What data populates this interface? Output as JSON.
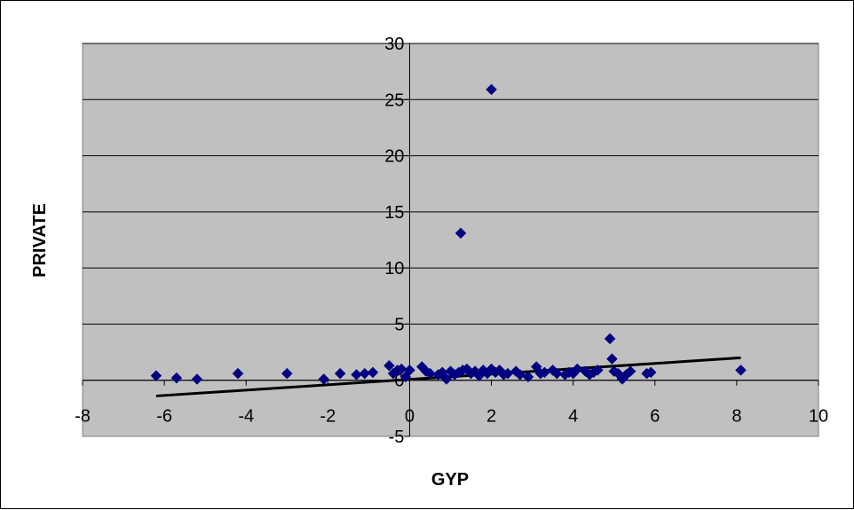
{
  "chart_data": {
    "type": "scatter",
    "title": "",
    "xlabel": "GYP",
    "ylabel": "PRIVATE",
    "xlim": [
      -8,
      10
    ],
    "ylim": [
      -5,
      30
    ],
    "x_ticks": [
      -8,
      -6,
      -4,
      -2,
      0,
      2,
      4,
      6,
      8,
      10
    ],
    "y_ticks": [
      -5,
      0,
      5,
      10,
      15,
      20,
      25,
      30
    ],
    "grid": "horizontal",
    "legend": "none",
    "colors": {
      "plot_area": "#c0c0c0",
      "marker": "#000080",
      "trendline": "#000000",
      "gridline": "#000000"
    },
    "series": [
      {
        "marker": "diamond",
        "points": [
          [
            -6.2,
            0.4
          ],
          [
            -5.7,
            0.2
          ],
          [
            -5.2,
            0.1
          ],
          [
            -4.2,
            0.6
          ],
          [
            -3.0,
            0.6
          ],
          [
            -2.1,
            0.1
          ],
          [
            -1.7,
            0.6
          ],
          [
            -1.3,
            0.5
          ],
          [
            -1.1,
            0.6
          ],
          [
            -0.9,
            0.7
          ],
          [
            -0.5,
            1.3
          ],
          [
            -0.4,
            0.6
          ],
          [
            -0.3,
            0.9
          ],
          [
            -0.2,
            1.0
          ],
          [
            -0.1,
            0.3
          ],
          [
            0.0,
            0.9
          ],
          [
            0.3,
            1.2
          ],
          [
            0.4,
            0.8
          ],
          [
            0.5,
            0.6
          ],
          [
            0.7,
            0.5
          ],
          [
            0.8,
            0.7
          ],
          [
            0.9,
            0.1
          ],
          [
            1.0,
            0.8
          ],
          [
            1.1,
            0.5
          ],
          [
            1.2,
            0.7
          ],
          [
            1.25,
            13.1
          ],
          [
            1.3,
            0.9
          ],
          [
            1.4,
            1.0
          ],
          [
            1.5,
            0.6
          ],
          [
            1.6,
            0.8
          ],
          [
            1.7,
            0.4
          ],
          [
            1.8,
            0.9
          ],
          [
            1.9,
            0.6
          ],
          [
            2.0,
            25.9
          ],
          [
            2.0,
            1.0
          ],
          [
            2.1,
            0.7
          ],
          [
            2.2,
            0.9
          ],
          [
            2.3,
            0.5
          ],
          [
            2.4,
            0.6
          ],
          [
            2.6,
            0.8
          ],
          [
            2.7,
            0.5
          ],
          [
            2.9,
            0.3
          ],
          [
            3.1,
            1.2
          ],
          [
            3.2,
            0.6
          ],
          [
            3.3,
            0.7
          ],
          [
            3.5,
            0.9
          ],
          [
            3.6,
            0.6
          ],
          [
            3.8,
            0.5
          ],
          [
            3.9,
            0.7
          ],
          [
            4.0,
            0.6
          ],
          [
            4.1,
            1.0
          ],
          [
            4.3,
            0.8
          ],
          [
            4.4,
            0.5
          ],
          [
            4.5,
            0.7
          ],
          [
            4.6,
            0.9
          ],
          [
            4.9,
            3.7
          ],
          [
            4.95,
            1.9
          ],
          [
            5.0,
            0.8
          ],
          [
            5.1,
            0.6
          ],
          [
            5.2,
            0.1
          ],
          [
            5.3,
            0.5
          ],
          [
            5.4,
            0.8
          ],
          [
            5.8,
            0.6
          ],
          [
            5.9,
            0.7
          ],
          [
            8.1,
            0.9
          ]
        ]
      }
    ],
    "trendline": {
      "x1": -6.2,
      "y1": -1.4,
      "x2": 8.1,
      "y2": 2.0
    }
  }
}
